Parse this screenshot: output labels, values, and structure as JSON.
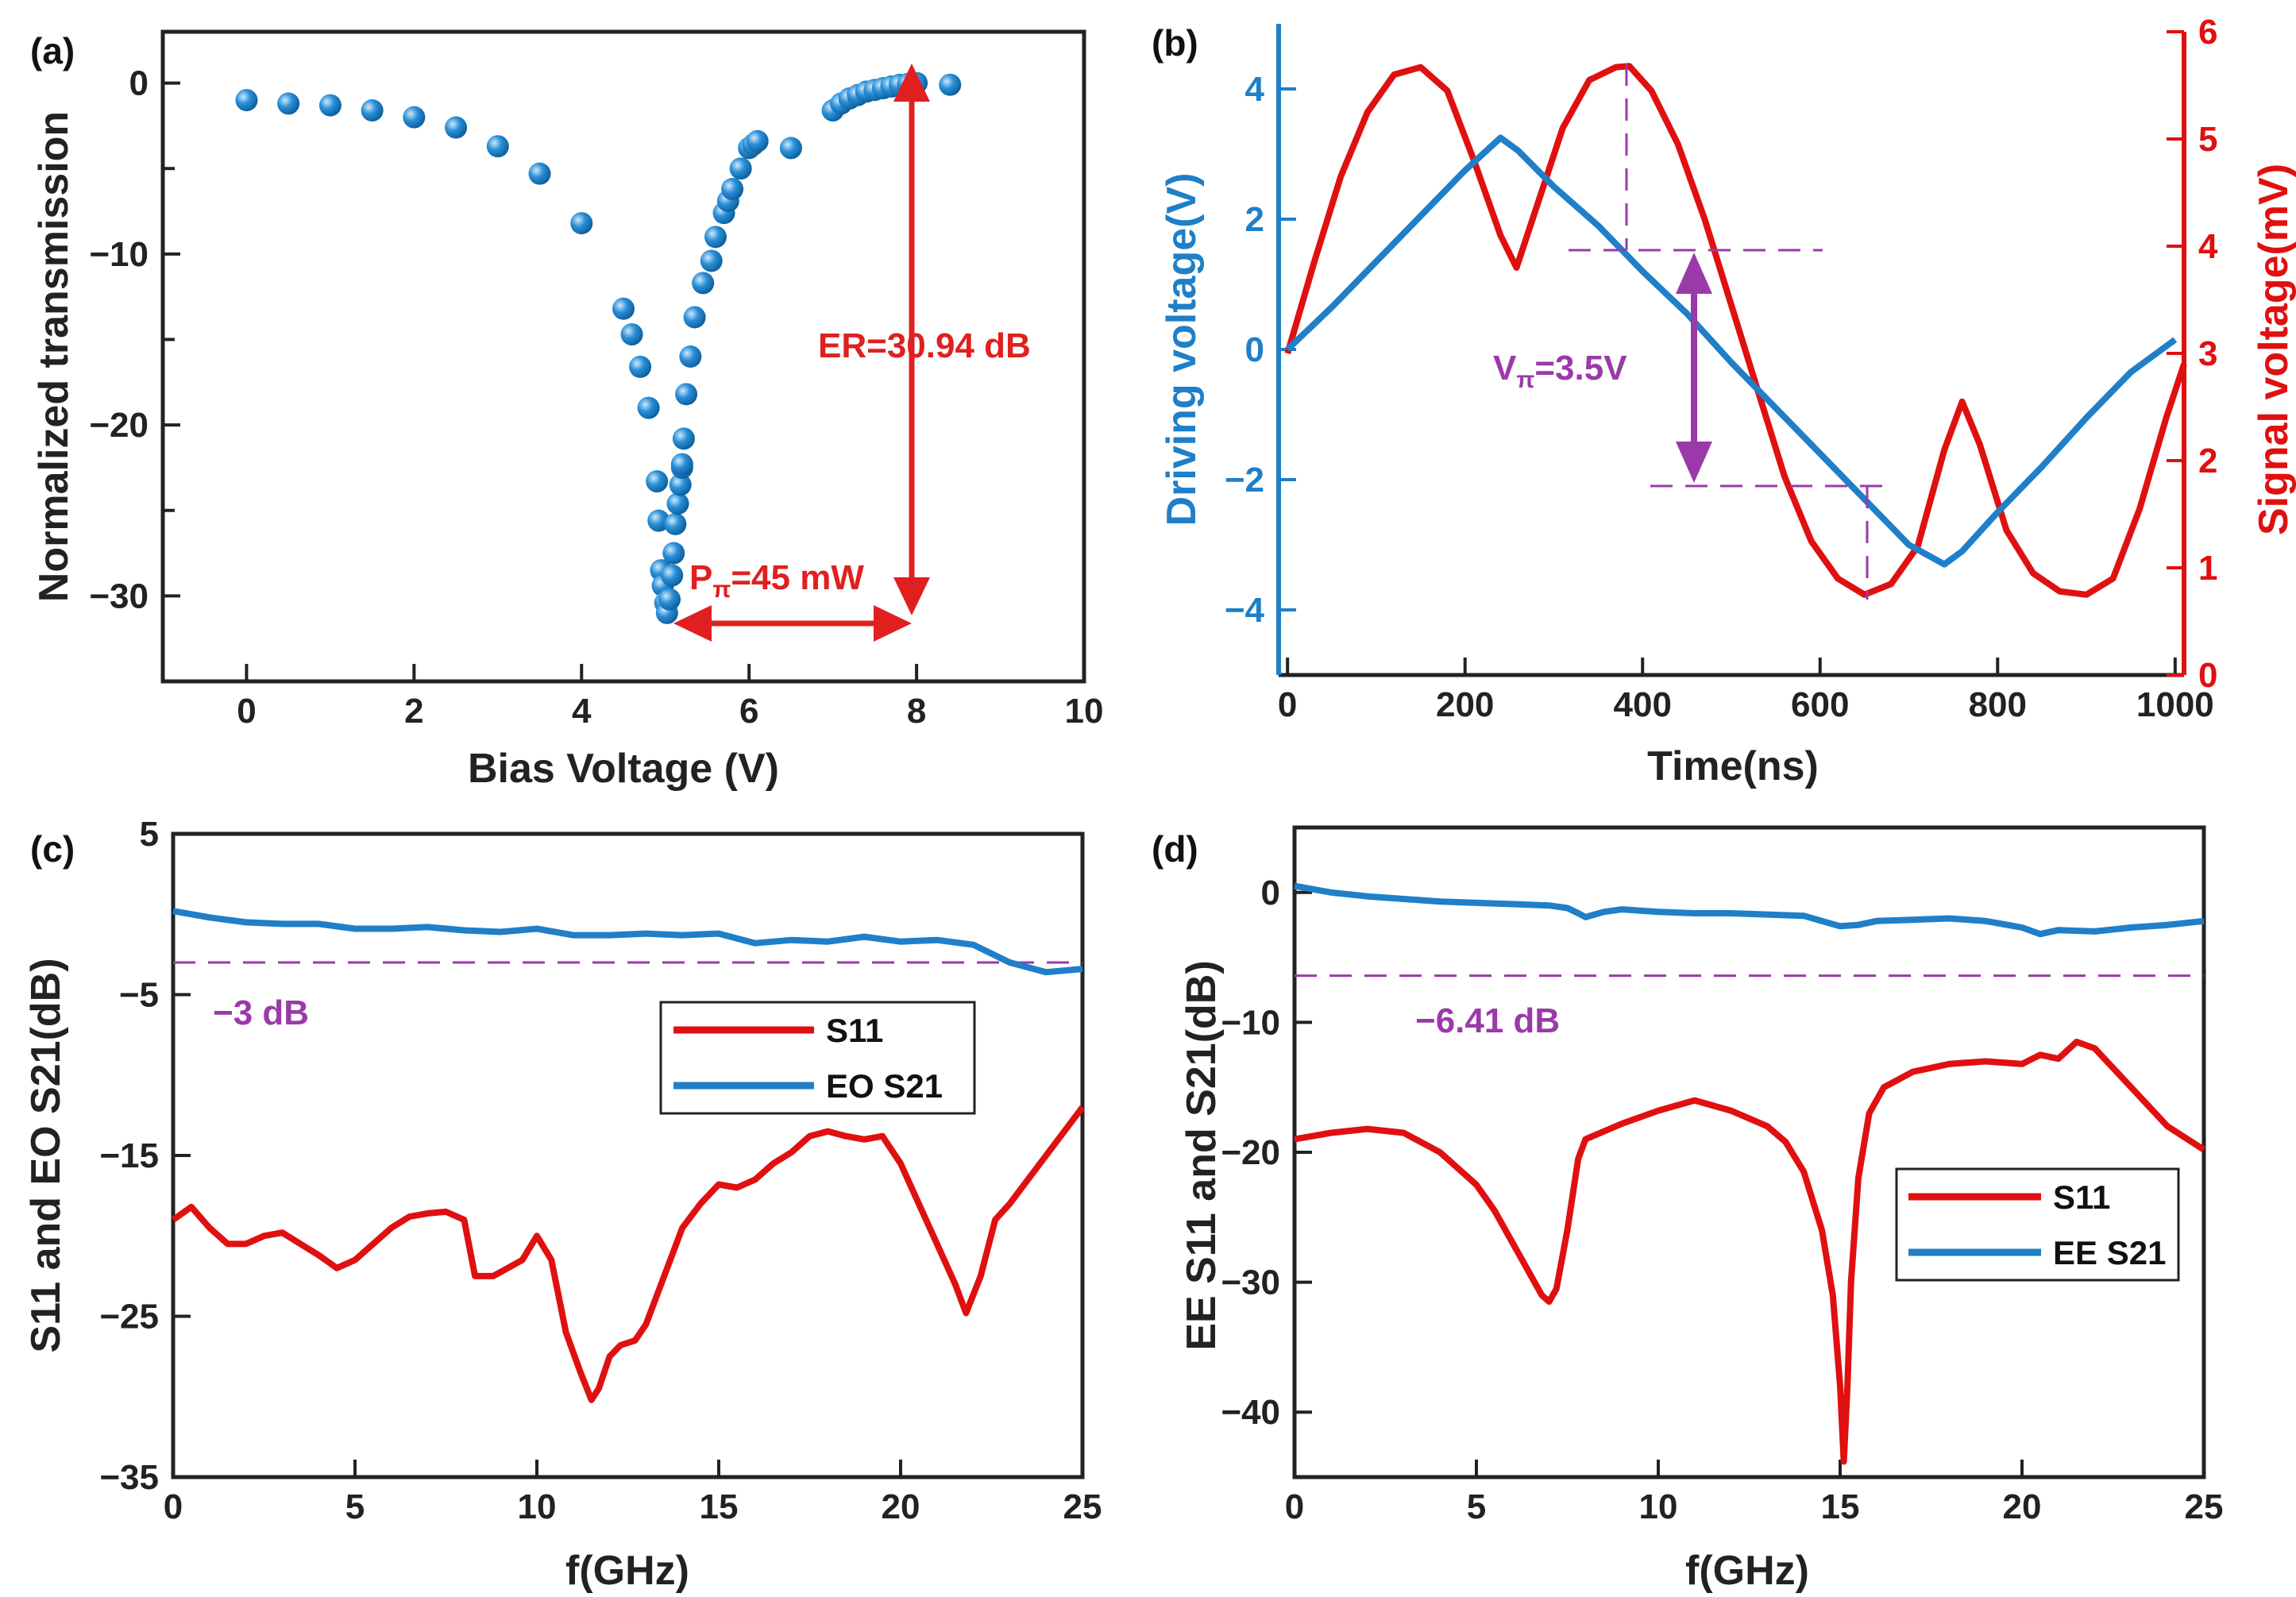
{
  "colors": {
    "blue": "#1f7fc8",
    "red": "#e01010",
    "purple": "#9a3aa8",
    "ann_red": "#e02020"
  },
  "chart_data": [
    {
      "panel": "(a)",
      "type": "scatter",
      "xlabel": "Bias Voltage (V)",
      "ylabel": "Normalized transmission",
      "xlim": [
        -1,
        10
      ],
      "ylim": [
        -35,
        3
      ],
      "xticks": [
        0,
        2,
        4,
        6,
        8,
        10
      ],
      "xtick_labels": [
        "0",
        "2",
        "4",
        "6",
        "8",
        "10"
      ],
      "yticks": [
        0,
        -10,
        -20,
        -30
      ],
      "ytick_labels": [
        "0",
        "−10",
        "−20",
        "−30"
      ],
      "series": [
        {
          "name": "transmission",
          "color": "#1f7fc8",
          "x": [
            0,
            0.5,
            1,
            1.5,
            2,
            2.5,
            3,
            3.5,
            4,
            4.5,
            4.6,
            4.7,
            4.8,
            4.9,
            4.92,
            4.95,
            4.97,
            5.0,
            5.02,
            5.05,
            5.08,
            5.1,
            5.12,
            5.15,
            5.18,
            5.2,
            5.2,
            5.22,
            5.25,
            5.3,
            5.35,
            5.45,
            5.55,
            5.6,
            5.7,
            5.75,
            5.8,
            5.9,
            6.0,
            6.05,
            6.1,
            6.5,
            7.0,
            7.1,
            7.2,
            7.3,
            7.4,
            7.5,
            7.6,
            7.7,
            7.8,
            7.9,
            8.0,
            8.4
          ],
          "y": [
            -1,
            -1.2,
            -1.3,
            -1.6,
            -2,
            -2.6,
            -3.7,
            -5.3,
            -8.2,
            -13.2,
            -14.7,
            -16.6,
            -19,
            -23.3,
            -25.6,
            -28.5,
            -29.4,
            -30.4,
            -31,
            -30.2,
            -28.8,
            -27.5,
            -25.8,
            -24.6,
            -23.5,
            -22.5,
            -22.3,
            -20.8,
            -18.2,
            -16,
            -13.7,
            -11.7,
            -10.4,
            -9,
            -7.6,
            -6.9,
            -6.2,
            -5,
            -3.8,
            -3.6,
            -3.4,
            -3.8,
            -1.6,
            -1.2,
            -0.9,
            -0.7,
            -0.5,
            -0.4,
            -0.3,
            -0.2,
            -0.1,
            -0.05,
            0,
            -0.1
          ]
        }
      ],
      "annotations": {
        "er_label": "ER=30.94 dB",
        "ppi_base": "P",
        "ppi_sub": "π",
        "ppi_rest": "=45 mW"
      }
    },
    {
      "panel": "(b)",
      "type": "line",
      "xlabel": "Time(ns)",
      "ylabel_left": "Driving voltage(V)",
      "ylabel_right": "Signal voltage(mV)",
      "xlim": [
        -10,
        1010
      ],
      "ylim_left": [
        -5,
        5
      ],
      "ylim_right": [
        0,
        6
      ],
      "xticks": [
        0,
        200,
        400,
        600,
        800,
        1000
      ],
      "xtick_labels": [
        "0",
        "200",
        "400",
        "600",
        "800",
        "1000"
      ],
      "yticks_left": [
        4,
        2,
        0,
        -2,
        -4
      ],
      "ytick_labels_left": [
        "4",
        "2",
        "0",
        "−2",
        "−4"
      ],
      "yticks_right": [
        0,
        1,
        2,
        3,
        4,
        5,
        6
      ],
      "ytick_labels_right": [
        "0",
        "1",
        "2",
        "3",
        "4",
        "5",
        "6"
      ],
      "series": [
        {
          "name": "Driving voltage",
          "axis": "left",
          "color": "#1f7fc8",
          "x": [
            0,
            50,
            100,
            150,
            200,
            240,
            260,
            300,
            350,
            400,
            450,
            500,
            550,
            600,
            650,
            700,
            740,
            760,
            800,
            850,
            900,
            950,
            1000
          ],
          "y": [
            0,
            0.65,
            1.35,
            2.05,
            2.75,
            3.25,
            3.05,
            2.5,
            1.9,
            1.2,
            0.55,
            -0.2,
            -0.9,
            -1.6,
            -2.3,
            -3.0,
            -3.3,
            -3.1,
            -2.5,
            -1.8,
            -1.05,
            -0.35,
            0.15
          ]
        },
        {
          "name": "Signal voltage",
          "axis": "right",
          "color": "#e01010",
          "x": [
            0,
            30,
            60,
            90,
            120,
            150,
            180,
            210,
            240,
            258,
            280,
            310,
            340,
            370,
            385,
            410,
            440,
            470,
            500,
            530,
            560,
            590,
            620,
            650,
            680,
            710,
            740,
            760,
            780,
            810,
            840,
            870,
            900,
            930,
            960,
            990,
            1010
          ],
          "y": [
            3.0,
            3.85,
            4.65,
            5.25,
            5.6,
            5.67,
            5.45,
            4.8,
            4.1,
            3.8,
            4.35,
            5.1,
            5.55,
            5.67,
            5.68,
            5.45,
            4.95,
            4.25,
            3.45,
            2.65,
            1.85,
            1.25,
            0.9,
            0.75,
            0.85,
            1.2,
            2.1,
            2.55,
            2.15,
            1.35,
            0.95,
            0.78,
            0.75,
            0.9,
            1.55,
            2.4,
            2.9
          ]
        }
      ],
      "annotations": {
        "vpi_base": "V",
        "vpi_sub": "π",
        "vpi_rest": "=3.5V"
      }
    },
    {
      "panel": "(c)",
      "type": "line",
      "xlabel": "f(GHz)",
      "ylabel": "S11 and EO S21(dB)",
      "xlim": [
        0,
        25
      ],
      "ylim": [
        -35,
        5
      ],
      "xticks": [
        0,
        5,
        10,
        15,
        20,
        25
      ],
      "xtick_labels": [
        "0",
        "5",
        "10",
        "15",
        "20",
        "25"
      ],
      "yticks": [
        5,
        -5,
        -15,
        -25,
        -35
      ],
      "ytick_labels": [
        "5",
        "−5",
        "−15",
        "−25",
        "−35"
      ],
      "series": [
        {
          "name": "S11",
          "color": "#e01010",
          "x": [
            0,
            0.5,
            1,
            1.5,
            2,
            2.5,
            3,
            3.5,
            4,
            4.5,
            5,
            5.5,
            6,
            6.5,
            7,
            7.5,
            8,
            8.3,
            8.8,
            9.2,
            9.6,
            10,
            10.4,
            10.8,
            11.2,
            11.5,
            11.7,
            12,
            12.3,
            12.7,
            13,
            13.5,
            14,
            14.5,
            15,
            15.5,
            16,
            16.5,
            17,
            17.5,
            18,
            18.5,
            19,
            19.5,
            20,
            20.5,
            21,
            21.5,
            21.8,
            22.2,
            22.6,
            23,
            23.5,
            24,
            24.5,
            25
          ],
          "y": [
            -19,
            -18.2,
            -19.5,
            -20.5,
            -20.5,
            -20,
            -19.8,
            -20.5,
            -21.2,
            -22,
            -21.5,
            -20.5,
            -19.5,
            -18.8,
            -18.6,
            -18.5,
            -19,
            -22.5,
            -22.5,
            -22,
            -21.5,
            -20,
            -21.5,
            -26,
            -28.5,
            -30.2,
            -29.5,
            -27.5,
            -26.8,
            -26.5,
            -25.5,
            -22.5,
            -19.5,
            -18,
            -16.8,
            -17,
            -16.5,
            -15.5,
            -14.8,
            -13.8,
            -13.5,
            -13.8,
            -14,
            -13.8,
            -15.5,
            -18,
            -20.5,
            -23,
            -24.8,
            -22.5,
            -19,
            -18,
            -16.5,
            -15,
            -13.5,
            -12
          ]
        },
        {
          "name": "EO S21",
          "color": "#1f7fc8",
          "x": [
            0,
            1,
            2,
            3,
            4,
            5,
            6,
            7,
            8,
            9,
            10,
            11,
            12,
            13,
            14,
            15,
            16,
            17,
            18,
            19,
            20,
            21,
            22,
            23,
            24,
            25
          ],
          "y": [
            0.2,
            -0.2,
            -0.5,
            -0.6,
            -0.6,
            -0.9,
            -0.9,
            -0.8,
            -1.0,
            -1.1,
            -0.9,
            -1.3,
            -1.3,
            -1.2,
            -1.3,
            -1.2,
            -1.8,
            -1.6,
            -1.7,
            -1.4,
            -1.7,
            -1.6,
            -1.9,
            -3.0,
            -3.6,
            -3.4
          ]
        }
      ],
      "reference_line": {
        "value": -3,
        "label": "−3 dB"
      },
      "legend": [
        "S11",
        "EO S21"
      ]
    },
    {
      "panel": "(d)",
      "type": "line",
      "xlabel": "f(GHz)",
      "ylabel": "EE S11 and S21(dB)",
      "xlim": [
        0,
        25
      ],
      "ylim": [
        -45,
        5
      ],
      "xticks": [
        0,
        5,
        10,
        15,
        20,
        25
      ],
      "xtick_labels": [
        "0",
        "5",
        "10",
        "15",
        "20",
        "25"
      ],
      "yticks": [
        0,
        -10,
        -20,
        -30,
        -40
      ],
      "ytick_labels": [
        "0",
        "−10",
        "−20",
        "−30",
        "−40"
      ],
      "series": [
        {
          "name": "S11",
          "color": "#e01010",
          "x": [
            0,
            1,
            2,
            3,
            4,
            5,
            5.5,
            6,
            6.5,
            6.8,
            7.0,
            7.2,
            7.5,
            7.8,
            8.0,
            9,
            10,
            11,
            12,
            13,
            13.5,
            14,
            14.5,
            14.8,
            15.0,
            15.1,
            15.2,
            15.3,
            15.5,
            15.8,
            16.2,
            17,
            18,
            19,
            20,
            20.5,
            21,
            21.5,
            22,
            22.5,
            23,
            24,
            25
          ],
          "y": [
            -19,
            -18.5,
            -18.2,
            -18.5,
            -20,
            -22.5,
            -24.5,
            -27,
            -29.5,
            -31,
            -31.5,
            -30.5,
            -26,
            -20.5,
            -19,
            -17.8,
            -16.8,
            -16,
            -16.8,
            -18,
            -19.2,
            -21.5,
            -26,
            -31,
            -38,
            -43.8,
            -38,
            -30,
            -22,
            -17,
            -15,
            -13.8,
            -13.2,
            -13,
            -13.2,
            -12.5,
            -12.8,
            -11.5,
            -12,
            -13.5,
            -15,
            -18,
            -19.8
          ]
        },
        {
          "name": "EE S21",
          "color": "#1f7fc8",
          "x": [
            0,
            1,
            2,
            3,
            4,
            5,
            6,
            7,
            7.5,
            7.8,
            8.0,
            8.5,
            9,
            10,
            11,
            12,
            13,
            14,
            14.5,
            15,
            15.5,
            16,
            17,
            18,
            19,
            20,
            20.5,
            21,
            22,
            23,
            24,
            25
          ],
          "y": [
            0.5,
            0.0,
            -0.3,
            -0.5,
            -0.7,
            -0.8,
            -0.9,
            -1.0,
            -1.2,
            -1.6,
            -1.9,
            -1.5,
            -1.3,
            -1.5,
            -1.6,
            -1.6,
            -1.7,
            -1.8,
            -2.2,
            -2.6,
            -2.5,
            -2.2,
            -2.1,
            -2.0,
            -2.2,
            -2.7,
            -3.2,
            -2.9,
            -3.0,
            -2.7,
            -2.5,
            -2.2
          ]
        }
      ],
      "reference_line": {
        "value": -6.41,
        "label": "−6.41 dB"
      },
      "legend": [
        "S11",
        "EE S21"
      ]
    }
  ]
}
